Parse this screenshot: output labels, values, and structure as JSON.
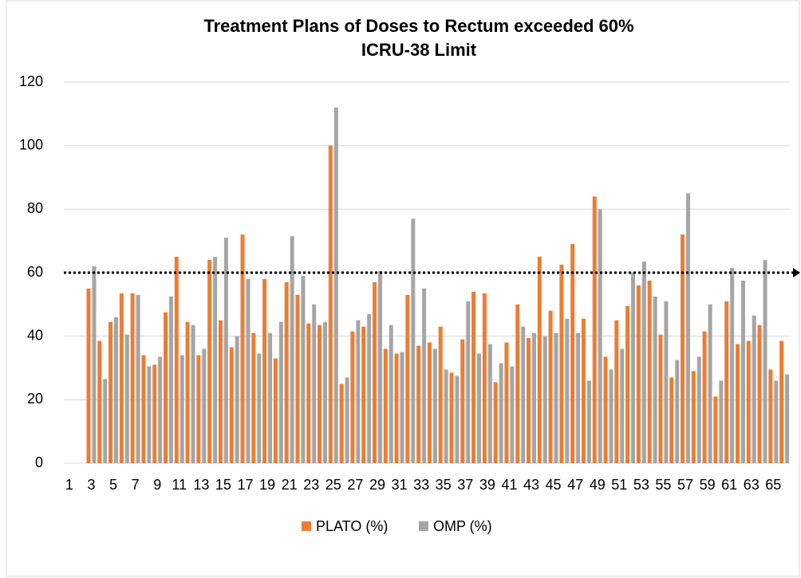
{
  "chart_data": {
    "type": "bar",
    "title": [
      "Treatment Plans of Doses to Rectum exceeded 60%",
      "ICRU-38 Limit"
    ],
    "categories": [
      "1",
      null,
      "3",
      null,
      "5",
      null,
      "7",
      null,
      "9",
      null,
      "11",
      null,
      "13",
      null,
      "15",
      null,
      "17",
      null,
      "19",
      null,
      "21",
      null,
      "23",
      null,
      "25",
      null,
      "27",
      null,
      "29",
      null,
      "31",
      null,
      "33",
      null,
      "35",
      null,
      "37",
      null,
      "39",
      null,
      "41",
      null,
      "43",
      null,
      "45",
      null,
      "47",
      null,
      "49",
      null,
      "51",
      null,
      "53",
      null,
      "55",
      null,
      "57",
      null,
      "59",
      null,
      "61",
      null,
      "63",
      null,
      "65",
      null
    ],
    "series": [
      {
        "name": "PLATO (%)",
        "color": "#ed7d31",
        "values": [
          null,
          null,
          55,
          38.5,
          44.5,
          53.5,
          53.5,
          34,
          31,
          47.5,
          65,
          44.5,
          34,
          64,
          45,
          36.5,
          72,
          41,
          58,
          33,
          57,
          53,
          44,
          43.5,
          100,
          25,
          41.5,
          43,
          57,
          36,
          34.5,
          53,
          37,
          38,
          43,
          28.5,
          39,
          54,
          53.5,
          25.5,
          38,
          50,
          39.5,
          65,
          48,
          62.5,
          69,
          45.5,
          84,
          33.5,
          45,
          49.5,
          56,
          57.5,
          40.5,
          27,
          72,
          29,
          41.5,
          21,
          51,
          37.5,
          38.5,
          43.5,
          29.5,
          38.5
        ]
      },
      {
        "name": "OMP (%)",
        "color": "#a5a5a5",
        "values": [
          null,
          null,
          62,
          26.5,
          46,
          40.5,
          53,
          30.5,
          33.5,
          52.5,
          34,
          43.5,
          36,
          65,
          71,
          40,
          58,
          34.5,
          41,
          44.5,
          71.5,
          59,
          50,
          44.5,
          112,
          27,
          45,
          47,
          60.5,
          43.5,
          35,
          77,
          55,
          36,
          29.5,
          27.5,
          51,
          34.5,
          37.5,
          31.5,
          30.5,
          43,
          41,
          40,
          41,
          45.5,
          41,
          26,
          80,
          29.5,
          36,
          60,
          63.5,
          52.5,
          51,
          32.5,
          85,
          33.5,
          50,
          26,
          61.5,
          57.5,
          46.5,
          64,
          26,
          28
        ]
      }
    ],
    "threshold": 60,
    "ylim": [
      0,
      120
    ],
    "yticks": [
      0,
      20,
      40,
      60,
      80,
      100,
      120
    ],
    "grid": true,
    "legend": "bottom"
  }
}
